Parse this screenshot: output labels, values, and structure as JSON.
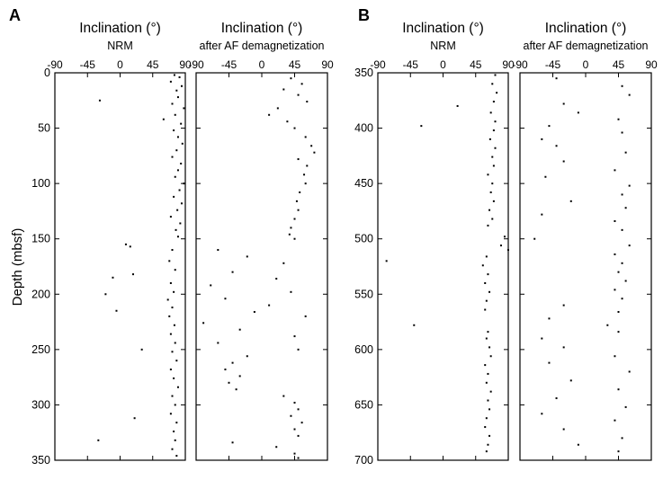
{
  "figure": {
    "panel_labels": [
      "A",
      "B"
    ],
    "ylabel": "Depth (mbsf)"
  },
  "chart_data": [
    {
      "type": "scatter",
      "panel": "A",
      "title": "Inclination (°)",
      "subtitle": "NRM",
      "xlabel": "",
      "ylabel": "Depth (mbsf)",
      "xlim": [
        -90,
        90
      ],
      "ylim": [
        350,
        0
      ],
      "xticks": [
        -90,
        -45,
        0,
        45,
        90
      ],
      "yticks": [
        0,
        50,
        100,
        150,
        200,
        250,
        300,
        350
      ],
      "grid": false,
      "series": [
        {
          "points": [
            [
              75,
              2
            ],
            [
              82,
              4
            ],
            [
              70,
              8
            ],
            [
              85,
              12
            ],
            [
              78,
              16
            ],
            [
              -28,
              25
            ],
            [
              80,
              22
            ],
            [
              72,
              28
            ],
            [
              88,
              32
            ],
            [
              76,
              38
            ],
            [
              60,
              42
            ],
            [
              84,
              46
            ],
            [
              74,
              52
            ],
            [
              80,
              58
            ],
            [
              86,
              64
            ],
            [
              78,
              70
            ],
            [
              72,
              76
            ],
            [
              84,
              82
            ],
            [
              80,
              88
            ],
            [
              76,
              94
            ],
            [
              88,
              100
            ],
            [
              82,
              106
            ],
            [
              74,
              112
            ],
            [
              85,
              118
            ],
            [
              79,
              124
            ],
            [
              70,
              130
            ],
            [
              83,
              136
            ],
            [
              77,
              142
            ],
            [
              80,
              148
            ],
            [
              8,
              155
            ],
            [
              14,
              157
            ],
            [
              -10,
              185
            ],
            [
              18,
              182
            ],
            [
              72,
              160
            ],
            [
              68,
              170
            ],
            [
              76,
              178
            ],
            [
              70,
              190
            ],
            [
              74,
              198
            ],
            [
              -20,
              200
            ],
            [
              66,
              205
            ],
            [
              72,
              212
            ],
            [
              -5,
              215
            ],
            [
              68,
              220
            ],
            [
              75,
              228
            ],
            [
              70,
              236
            ],
            [
              76,
              244
            ],
            [
              30,
              250
            ],
            [
              72,
              252
            ],
            [
              78,
              260
            ],
            [
              70,
              268
            ],
            [
              74,
              276
            ],
            [
              80,
              284
            ],
            [
              72,
              292
            ],
            [
              76,
              300
            ],
            [
              70,
              308
            ],
            [
              20,
              312
            ],
            [
              78,
              316
            ],
            [
              74,
              324
            ],
            [
              76,
              332
            ],
            [
              -30,
              332
            ],
            [
              72,
              340
            ],
            [
              78,
              346
            ]
          ]
        }
      ]
    },
    {
      "type": "scatter",
      "panel": "A",
      "title": "Inclination (°)",
      "subtitle": "after AF demagnetization",
      "xlabel": "",
      "ylabel": "",
      "xlim": [
        -90,
        90
      ],
      "ylim": [
        350,
        0
      ],
      "xticks": [
        -90,
        -45,
        0,
        45,
        90
      ],
      "yticks": [
        0,
        50,
        100,
        150,
        200,
        250,
        300,
        350
      ],
      "grid": false,
      "series": [
        {
          "points": [
            [
              40,
              5
            ],
            [
              55,
              10
            ],
            [
              30,
              15
            ],
            [
              50,
              20
            ],
            [
              62,
              26
            ],
            [
              22,
              32
            ],
            [
              10,
              38
            ],
            [
              35,
              44
            ],
            [
              45,
              50
            ],
            [
              60,
              58
            ],
            [
              68,
              66
            ],
            [
              72,
              72
            ],
            [
              50,
              78
            ],
            [
              62,
              84
            ],
            [
              58,
              92
            ],
            [
              60,
              100
            ],
            [
              52,
              108
            ],
            [
              48,
              116
            ],
            [
              50,
              124
            ],
            [
              45,
              132
            ],
            [
              40,
              140
            ],
            [
              38,
              146
            ],
            [
              45,
              150
            ],
            [
              -60,
              160
            ],
            [
              -20,
              166
            ],
            [
              30,
              172
            ],
            [
              -40,
              180
            ],
            [
              20,
              186
            ],
            [
              -70,
              192
            ],
            [
              40,
              198
            ],
            [
              -50,
              204
            ],
            [
              10,
              210
            ],
            [
              -10,
              216
            ],
            [
              60,
              220
            ],
            [
              -80,
              226
            ],
            [
              -30,
              232
            ],
            [
              45,
              238
            ],
            [
              -60,
              244
            ],
            [
              50,
              250
            ],
            [
              -20,
              256
            ],
            [
              -40,
              262
            ],
            [
              -50,
              268
            ],
            [
              -30,
              274
            ],
            [
              -45,
              280
            ],
            [
              -35,
              286
            ],
            [
              30,
              292
            ],
            [
              45,
              298
            ],
            [
              50,
              304
            ],
            [
              40,
              310
            ],
            [
              55,
              316
            ],
            [
              45,
              322
            ],
            [
              50,
              328
            ],
            [
              -40,
              334
            ],
            [
              20,
              338
            ],
            [
              45,
              344
            ],
            [
              50,
              348
            ]
          ]
        }
      ]
    },
    {
      "type": "scatter",
      "panel": "B",
      "title": "Inclination (°)",
      "subtitle": "NRM",
      "xlabel": "",
      "ylabel": "",
      "xlim": [
        -90,
        90
      ],
      "ylim": [
        700,
        350
      ],
      "xticks": [
        -90,
        -45,
        0,
        45,
        90
      ],
      "yticks": [
        350,
        400,
        450,
        500,
        550,
        600,
        650,
        700
      ],
      "grid": false,
      "series": [
        {
          "points": [
            [
              72,
              352
            ],
            [
              68,
              360
            ],
            [
              74,
              368
            ],
            [
              70,
              376
            ],
            [
              20,
              380
            ],
            [
              66,
              386
            ],
            [
              72,
              394
            ],
            [
              -30,
              398
            ],
            [
              70,
              402
            ],
            [
              65,
              410
            ],
            [
              72,
              418
            ],
            [
              68,
              426
            ],
            [
              70,
              434
            ],
            [
              62,
              442
            ],
            [
              68,
              450
            ],
            [
              66,
              458
            ],
            [
              70,
              466
            ],
            [
              64,
              474
            ],
            [
              68,
              482
            ],
            [
              62,
              488
            ],
            [
              85,
              498
            ],
            [
              80,
              506
            ],
            [
              90,
              510
            ],
            [
              60,
              516
            ],
            [
              -78,
              520
            ],
            [
              55,
              524
            ],
            [
              62,
              532
            ],
            [
              58,
              540
            ],
            [
              64,
              548
            ],
            [
              60,
              556
            ],
            [
              58,
              564
            ],
            [
              -40,
              578
            ],
            [
              62,
              584
            ],
            [
              60,
              590
            ],
            [
              64,
              598
            ],
            [
              66,
              606
            ],
            [
              58,
              614
            ],
            [
              62,
              622
            ],
            [
              60,
              630
            ],
            [
              66,
              638
            ],
            [
              62,
              646
            ],
            [
              64,
              654
            ],
            [
              60,
              662
            ],
            [
              58,
              670
            ],
            [
              64,
              678
            ],
            [
              62,
              686
            ],
            [
              60,
              692
            ]
          ]
        }
      ]
    },
    {
      "type": "scatter",
      "panel": "B",
      "title": "Inclination (°)",
      "subtitle": "after AF demagnetization",
      "xlabel": "",
      "ylabel": "",
      "xlim": [
        -90,
        90
      ],
      "ylim": [
        700,
        350
      ],
      "xticks": [
        -90,
        -45,
        0,
        45,
        90
      ],
      "yticks": [
        350,
        400,
        450,
        500,
        550,
        600,
        650,
        700
      ],
      "grid": false,
      "series": [
        {
          "points": [
            [
              -40,
              355
            ],
            [
              50,
              362
            ],
            [
              60,
              370
            ],
            [
              -30,
              378
            ],
            [
              -10,
              386
            ],
            [
              45,
              392
            ],
            [
              -50,
              398
            ],
            [
              50,
              404
            ],
            [
              -60,
              410
            ],
            [
              -40,
              416
            ],
            [
              55,
              422
            ],
            [
              -30,
              430
            ],
            [
              40,
              438
            ],
            [
              -55,
              444
            ],
            [
              60,
              452
            ],
            [
              50,
              460
            ],
            [
              -20,
              466
            ],
            [
              55,
              472
            ],
            [
              -60,
              478
            ],
            [
              40,
              484
            ],
            [
              50,
              492
            ],
            [
              -70,
              500
            ],
            [
              60,
              506
            ],
            [
              40,
              514
            ],
            [
              50,
              522
            ],
            [
              45,
              530
            ],
            [
              55,
              538
            ],
            [
              40,
              546
            ],
            [
              50,
              554
            ],
            [
              -30,
              560
            ],
            [
              45,
              566
            ],
            [
              -50,
              572
            ],
            [
              30,
              578
            ],
            [
              45,
              584
            ],
            [
              -60,
              590
            ],
            [
              -30,
              598
            ],
            [
              40,
              606
            ],
            [
              -50,
              612
            ],
            [
              60,
              620
            ],
            [
              -20,
              628
            ],
            [
              45,
              636
            ],
            [
              -40,
              644
            ],
            [
              55,
              652
            ],
            [
              -60,
              658
            ],
            [
              40,
              664
            ],
            [
              -30,
              672
            ],
            [
              50,
              680
            ],
            [
              -10,
              686
            ],
            [
              45,
              692
            ]
          ]
        }
      ]
    }
  ]
}
